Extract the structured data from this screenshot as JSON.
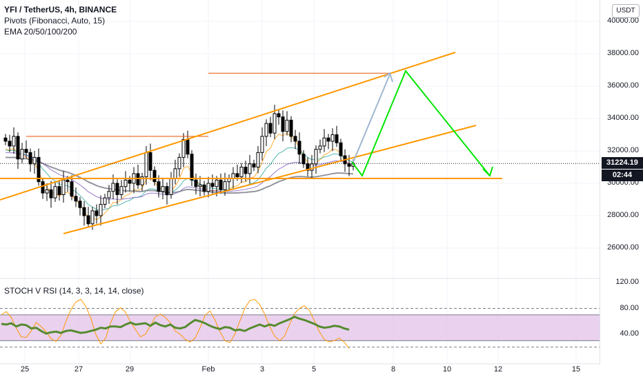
{
  "legend": {
    "symbol": "YFI / TetherUS, 4h, BINANCE",
    "pivots": "Pivots (Fibonacci, Auto, 15)",
    "ema": "EMA 20/50/100/200"
  },
  "currency": "USDT",
  "price_axis": {
    "ticks": [
      "40000.00",
      "38000.00",
      "36000.00",
      "34000.00",
      "32000.00",
      "30000.00",
      "28000.00",
      "26000.00"
    ],
    "current_price": "31224.19",
    "countdown": "02:44",
    "tick_values": [
      40000,
      38000,
      36000,
      34000,
      32000,
      30000,
      28000,
      26000
    ]
  },
  "oscillator": {
    "label": "STOCH V RSI (14, 3, 3, 14, 14, close)",
    "ticks": [
      "120.00",
      "80.00",
      "40.00"
    ],
    "tick_values": [
      120,
      80,
      40
    ]
  },
  "time_axis": {
    "labels": [
      "25",
      "27",
      "29",
      "Feb",
      "3",
      "5",
      "8",
      "10",
      "12",
      "15"
    ]
  },
  "colors": {
    "up": "#26a69a",
    "down": "#000000",
    "candle_up_body": "#ffffff",
    "channel": "#ff9800",
    "projection": "#00e600",
    "arrow": "#9fb7d0",
    "stoch_band": "#e1bee7",
    "stoch_k": "#558b2f",
    "stoch_d": "#ff9800",
    "price_badge": "#131722"
  },
  "chart_data": {
    "type": "candlestick",
    "x_labels": [
      "25",
      "27",
      "29",
      "Feb",
      "3",
      "5",
      "8",
      "10",
      "12",
      "15"
    ],
    "y_range": [
      25000,
      41000
    ],
    "levels": {
      "current": 31224.19,
      "support": 30300,
      "resistance_top": 36800,
      "resistance_left": 32900
    },
    "closes": [
      32600,
      32300,
      32900,
      31500,
      32100,
      31900,
      31200,
      31600,
      30100,
      29400,
      29600,
      29100,
      29800,
      29300,
      30200,
      30100,
      29200,
      28900,
      28500,
      28000,
      27500,
      28300,
      28000,
      28700,
      29100,
      29500,
      30000,
      29300,
      29800,
      30200,
      30000,
      30600,
      29900,
      30400,
      31900,
      30800,
      30100,
      29500,
      29800,
      29300,
      30300,
      30900,
      31600,
      32700,
      31800,
      30200,
      29800,
      29900,
      29500,
      30000,
      29800,
      30200,
      29600,
      30100,
      30300,
      30600,
      30400,
      31000,
      30600,
      31200,
      31000,
      31900,
      32900,
      33700,
      33100,
      34300,
      34100,
      33200,
      33900,
      32900,
      32600,
      31800,
      31200,
      30800,
      31200,
      32100,
      32300,
      32800,
      32600,
      33000,
      32500,
      31700,
      31200,
      31050,
      31224
    ],
    "stoch_k": [
      56,
      55,
      57,
      52,
      55,
      54,
      49,
      50,
      45,
      41,
      43,
      44,
      42,
      45,
      46,
      44,
      42,
      43,
      45,
      47,
      50,
      49,
      52,
      52,
      51,
      55,
      58,
      55,
      56,
      57,
      53,
      58,
      54,
      52,
      55,
      50,
      49,
      51,
      57,
      62,
      60,
      57,
      53,
      50,
      48,
      51,
      50,
      46,
      47,
      45,
      49,
      52,
      55,
      52,
      55,
      53,
      57,
      60,
      63,
      67,
      64,
      62,
      59,
      56,
      52,
      50,
      51,
      53,
      52,
      49,
      47
    ],
    "stoch_d": [
      70,
      75,
      66,
      49,
      36,
      35,
      45,
      58,
      52,
      44,
      33,
      29,
      38,
      60,
      78,
      90,
      94,
      83,
      65,
      40,
      25,
      34,
      58,
      75,
      81,
      74,
      59,
      47,
      36,
      40,
      53,
      67,
      71,
      66,
      58,
      45,
      40,
      32,
      28,
      34,
      50,
      69,
      76,
      62,
      44,
      30,
      27,
      40,
      60,
      80,
      92,
      94,
      86,
      71,
      52,
      37,
      30,
      37,
      55,
      72,
      80,
      84,
      77,
      61,
      44,
      32,
      28,
      30,
      34,
      28,
      18
    ],
    "stoch_range": [
      0,
      120
    ],
    "stoch_levels": [
      80,
      20
    ]
  }
}
